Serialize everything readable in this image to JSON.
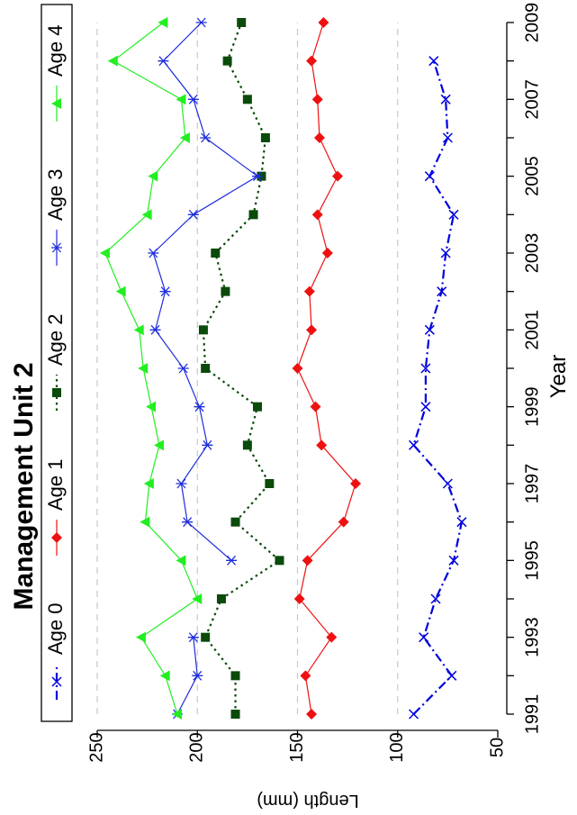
{
  "chart_data": {
    "type": "line",
    "title": "Management Unit 2",
    "xlabel": "Year",
    "ylabel": "Length (mm)",
    "xlim": [
      1991,
      2009
    ],
    "ylim": [
      50,
      250
    ],
    "x_ticks": [
      1991,
      1993,
      1995,
      1997,
      1999,
      2001,
      2003,
      2005,
      2007,
      2009
    ],
    "y_ticks": [
      50,
      100,
      150,
      200,
      250
    ],
    "grid": {
      "horizontal_dashed_at": [
        100,
        150,
        200,
        250
      ]
    },
    "legend_position": "top",
    "orientation": "rotated 90 degrees counter-clockwise",
    "series": [
      {
        "name": "Age 0",
        "color": "#0000dd",
        "marker": "x",
        "line_style": "dash-dot",
        "points": [
          [
            1991,
            92
          ],
          [
            1992,
            73
          ],
          [
            1993,
            87
          ],
          [
            1994,
            81
          ],
          [
            1995,
            72
          ],
          [
            1996,
            68
          ],
          [
            1997,
            75
          ],
          [
            1998,
            92
          ],
          [
            1999,
            86
          ],
          [
            2000,
            86
          ],
          [
            2001,
            84
          ],
          [
            2002,
            78
          ],
          [
            2003,
            76
          ],
          [
            2004,
            72
          ],
          [
            2005,
            84
          ],
          [
            2006,
            75
          ],
          [
            2007,
            76
          ],
          [
            2008,
            82
          ]
        ]
      },
      {
        "name": "Age 1",
        "color": "#ee1111",
        "marker": "diamond",
        "line_style": "solid",
        "points": [
          [
            1991,
            143
          ],
          [
            1992,
            146
          ],
          [
            1993,
            133
          ],
          [
            1994,
            149
          ],
          [
            1995,
            145
          ],
          [
            1996,
            127
          ],
          [
            1997,
            121
          ],
          [
            1998,
            138
          ],
          [
            1999,
            141
          ],
          [
            2000,
            150
          ],
          [
            2001,
            143
          ],
          [
            2002,
            144
          ],
          [
            2003,
            135
          ],
          [
            2004,
            140
          ],
          [
            2005,
            130
          ],
          [
            2006,
            139
          ],
          [
            2007,
            140
          ],
          [
            2008,
            143
          ],
          [
            2009,
            137
          ]
        ]
      },
      {
        "name": "Age 2",
        "color": "#0a4a0a",
        "marker": "square",
        "line_style": "dotted",
        "points": [
          [
            1991,
            181
          ],
          [
            1992,
            181
          ],
          [
            1993,
            196
          ],
          [
            1994,
            188
          ],
          [
            1995,
            159
          ],
          [
            1996,
            181
          ],
          [
            1997,
            164
          ],
          [
            1998,
            175
          ],
          [
            1999,
            170
          ],
          [
            2000,
            196
          ],
          [
            2001,
            197
          ],
          [
            2002,
            186
          ],
          [
            2003,
            191
          ],
          [
            2004,
            172
          ],
          [
            2005,
            168
          ],
          [
            2006,
            166
          ],
          [
            2007,
            175
          ],
          [
            2008,
            185
          ],
          [
            2009,
            178
          ]
        ]
      },
      {
        "name": "Age 3",
        "color": "#1e2ddb",
        "marker": "asterisk",
        "line_style": "solid",
        "points": [
          [
            1991,
            210
          ],
          [
            1992,
            200
          ],
          [
            1993,
            202
          ],
          [
            1994,
            null
          ],
          [
            1995,
            183
          ],
          [
            1996,
            205
          ],
          [
            1997,
            208
          ],
          [
            1998,
            195
          ],
          [
            1999,
            199
          ],
          [
            2000,
            207
          ],
          [
            2001,
            221
          ],
          [
            2002,
            216
          ],
          [
            2003,
            222
          ],
          [
            2004,
            202
          ],
          [
            2005,
            170
          ],
          [
            2006,
            196
          ],
          [
            2007,
            202
          ],
          [
            2008,
            217
          ],
          [
            2009,
            198
          ]
        ]
      },
      {
        "name": "Age 4",
        "color": "#22ee22",
        "marker": "triangle",
        "line_style": "solid",
        "points": [
          [
            1991,
            210
          ],
          [
            1992,
            216
          ],
          [
            1993,
            228
          ],
          [
            1994,
            200
          ],
          [
            1995,
            208
          ],
          [
            1996,
            226
          ],
          [
            1997,
            224
          ],
          [
            1998,
            219
          ],
          [
            1999,
            223
          ],
          [
            2000,
            227
          ],
          [
            2001,
            229
          ],
          [
            2002,
            238
          ],
          [
            2003,
            246
          ],
          [
            2004,
            225
          ],
          [
            2005,
            222
          ],
          [
            2006,
            206
          ],
          [
            2007,
            208
          ],
          [
            2008,
            242
          ],
          [
            2009,
            217
          ]
        ]
      }
    ]
  }
}
